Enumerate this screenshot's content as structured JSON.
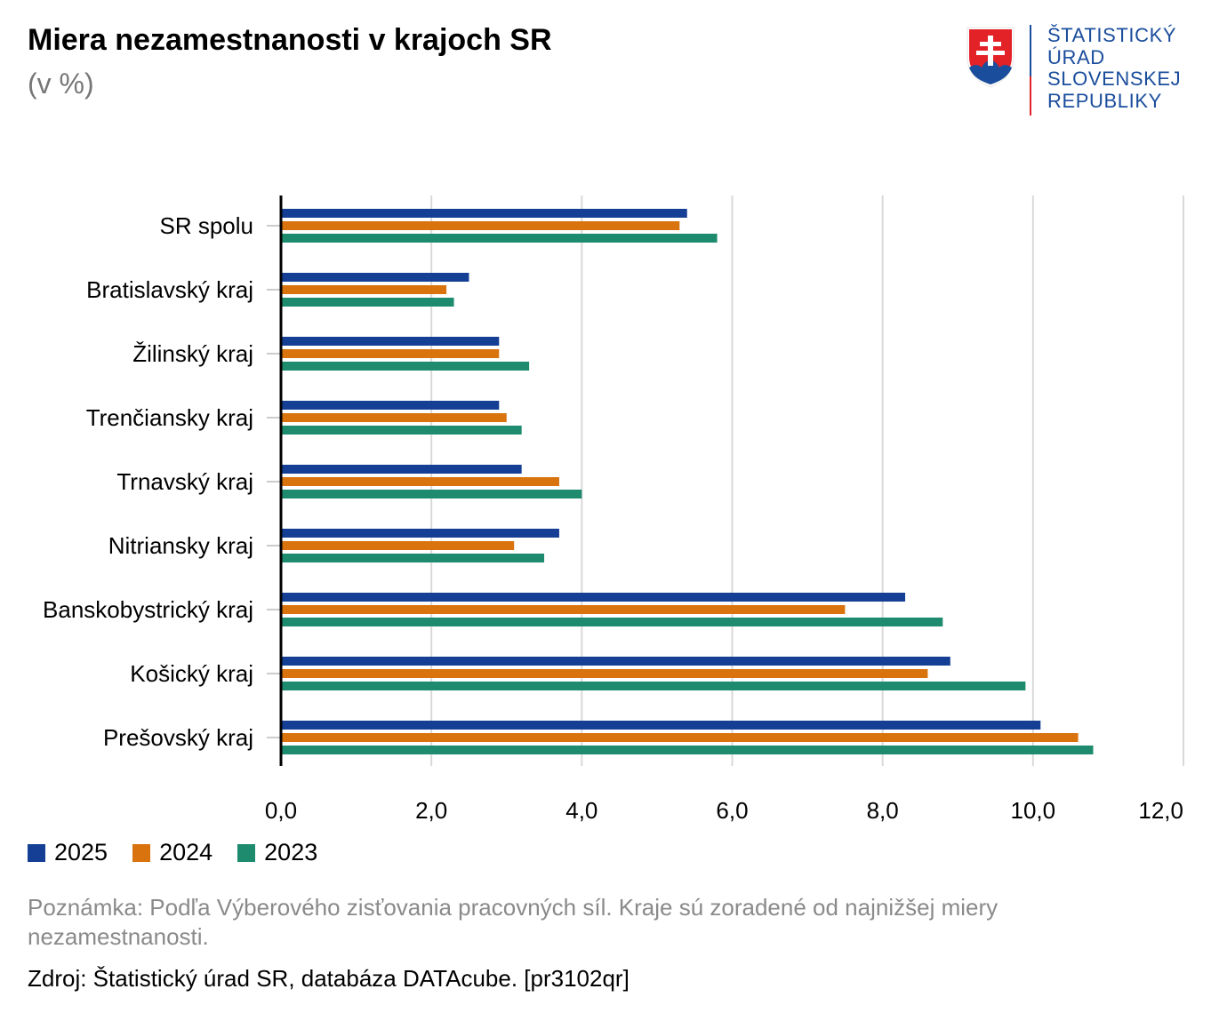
{
  "header": {
    "title": "Miera nezamestnanosti v krajoch SR",
    "subtitle": "(v %)"
  },
  "logo": {
    "lines": [
      "ŠTATISTICKÝ",
      "ÚRAD",
      "SLOVENSKEJ",
      "REPUBLIKY"
    ]
  },
  "chart_data": {
    "type": "bar",
    "orientation": "horizontal",
    "title": "Miera nezamestnanosti v krajoch SR",
    "subtitle": "(v %)",
    "xlabel": "",
    "ylabel": "",
    "xlim": [
      0,
      12
    ],
    "xticks": [
      0,
      2,
      4,
      6,
      8,
      10,
      12
    ],
    "xtick_labels": [
      "0,0",
      "2,0",
      "4,0",
      "6,0",
      "8,0",
      "10,0",
      "12,0"
    ],
    "grid": true,
    "legend_position": "bottom-left",
    "categories": [
      "SR spolu",
      "Bratislavský kraj",
      "Žilinský kraj",
      "Trenčiansky kraj",
      "Trnavský kraj",
      "Nitriansky kraj",
      "Banskobystrický kraj",
      "Košický kraj",
      "Prešovský kraj"
    ],
    "series": [
      {
        "name": "2025",
        "color": "#143f94",
        "values": [
          5.4,
          2.5,
          2.9,
          2.9,
          3.2,
          3.7,
          8.3,
          8.9,
          10.1
        ]
      },
      {
        "name": "2024",
        "color": "#d9730d",
        "values": [
          5.3,
          2.2,
          2.9,
          3.0,
          3.7,
          3.1,
          7.5,
          8.6,
          10.6
        ]
      },
      {
        "name": "2023",
        "color": "#1e8a6e",
        "values": [
          5.8,
          2.3,
          3.3,
          3.2,
          4.0,
          3.5,
          8.8,
          9.9,
          10.8
        ]
      }
    ]
  },
  "footer": {
    "note": "Poznámka: Podľa Výberového zisťovania pracovných síl. Kraje sú zoradené od najnižšej miery nezamestnanosti.",
    "source": "Zdroj: Štatistický úrad SR, databáza DATAcube. [pr3102qr]"
  }
}
